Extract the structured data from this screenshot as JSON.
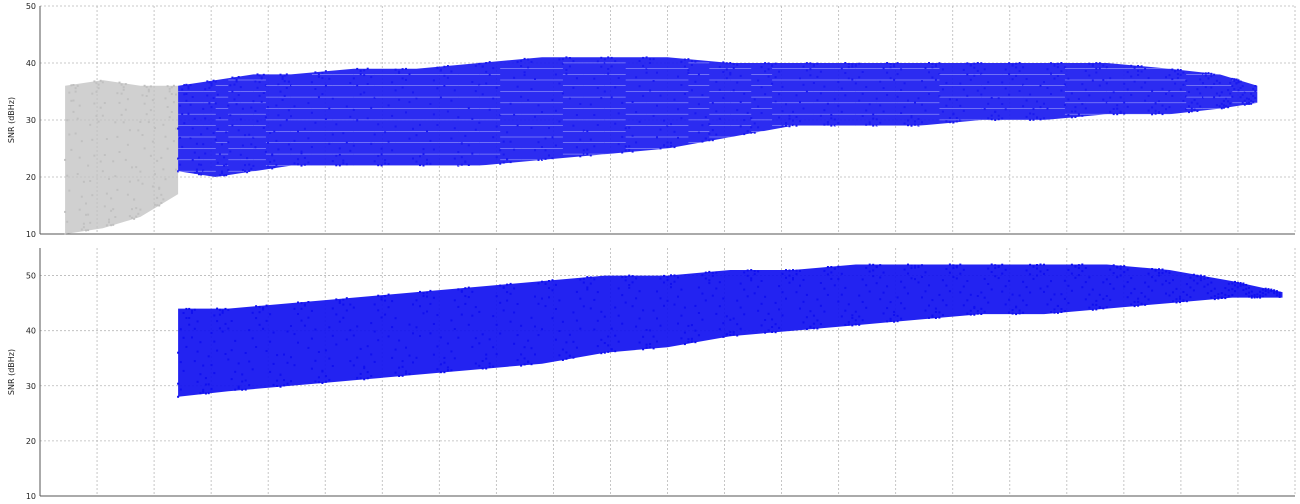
{
  "chart_data": [
    {
      "type": "scatter",
      "title": "",
      "xlabel": "",
      "ylabel": "SNR (dBHz)",
      "ylim": [
        10,
        50
      ],
      "yticks": [
        10,
        20,
        30,
        40,
        50
      ],
      "grid": true,
      "colors": {
        "series": "#1a1af0",
        "background_series": "#c0c0c0"
      },
      "series": [
        {
          "values": [
            [
              0.02,
              10,
              36
            ],
            [
              0.05,
              11,
              37
            ],
            [
              0.08,
              13,
              36
            ],
            [
              0.11,
              17,
              36
            ]
          ]
        },
        {
          "values": [
            [
              0.11,
              21,
              36
            ],
            [
              0.14,
              20,
              37
            ],
            [
              0.17,
              21,
              38
            ],
            [
              0.2,
              22,
              38
            ],
            [
              0.25,
              22,
              39
            ],
            [
              0.3,
              22,
              39
            ],
            [
              0.35,
              22,
              40
            ],
            [
              0.4,
              23,
              41
            ],
            [
              0.45,
              24,
              41
            ],
            [
              0.5,
              25,
              41
            ],
            [
              0.55,
              27,
              40
            ],
            [
              0.6,
              29,
              40
            ],
            [
              0.65,
              29,
              40
            ],
            [
              0.7,
              29,
              40
            ],
            [
              0.75,
              30,
              40
            ],
            [
              0.8,
              30,
              40
            ],
            [
              0.85,
              31,
              40
            ],
            [
              0.9,
              31,
              39
            ],
            [
              0.94,
              32,
              38
            ],
            [
              0.97,
              33,
              36
            ]
          ]
        }
      ]
    },
    {
      "type": "scatter",
      "title": "",
      "xlabel": "",
      "ylabel": "SNR (dBHz)",
      "ylim": [
        10,
        55
      ],
      "yticks": [
        10,
        20,
        30,
        40,
        50
      ],
      "grid": true,
      "colors": {
        "series": "#1010f0"
      },
      "series": [
        {
          "values": [
            [
              0.11,
              28,
              44
            ],
            [
              0.15,
              29,
              44
            ],
            [
              0.2,
              30,
              45
            ],
            [
              0.25,
              31,
              46
            ],
            [
              0.3,
              32,
              47
            ],
            [
              0.35,
              33,
              48
            ],
            [
              0.4,
              34,
              49
            ],
            [
              0.45,
              36,
              50
            ],
            [
              0.5,
              37,
              50
            ],
            [
              0.55,
              39,
              51
            ],
            [
              0.6,
              40,
              51
            ],
            [
              0.65,
              41,
              52
            ],
            [
              0.7,
              42,
              52
            ],
            [
              0.75,
              43,
              52
            ],
            [
              0.8,
              43,
              52
            ],
            [
              0.85,
              44,
              52
            ],
            [
              0.9,
              45,
              51
            ],
            [
              0.95,
              46,
              49
            ],
            [
              0.99,
              46,
              47
            ]
          ]
        }
      ]
    }
  ]
}
